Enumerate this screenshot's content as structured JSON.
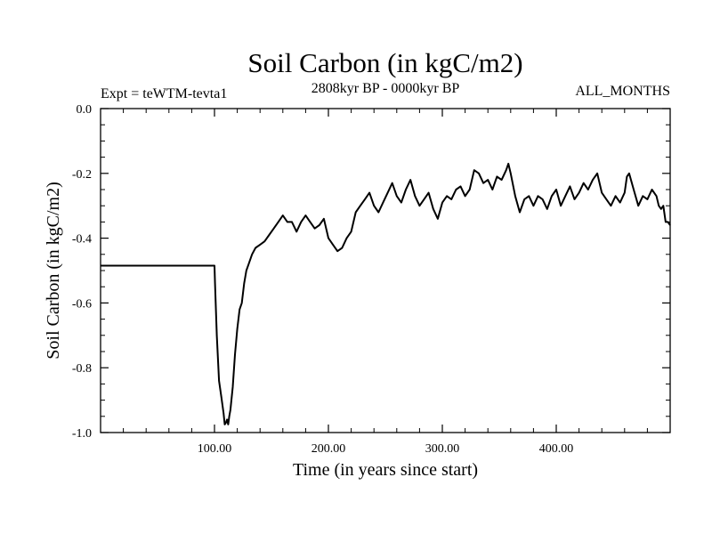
{
  "header": {
    "left": "Expt = teWTM-tevta1",
    "center": "2808kyr BP - 0000kyr BP",
    "right": "ALL_MONTHS"
  },
  "chart_data": {
    "type": "line",
    "title": "Soil Carbon (in kgC/m2)",
    "xlabel": "Time (in years since start)",
    "ylabel": "Soil Carbon (in kgC/m2)",
    "xlim": [
      0,
      500
    ],
    "ylim": [
      -1.0,
      0.0
    ],
    "xticks": [
      100,
      200,
      300,
      400
    ],
    "xtick_labels": [
      "100.00",
      "200.00",
      "300.00",
      "400.00"
    ],
    "yticks": [
      -1.0,
      -0.8,
      -0.6,
      -0.4,
      -0.2,
      0.0
    ],
    "ytick_labels": [
      "-1.0",
      "-0.8",
      "-0.6",
      "-0.4",
      "-0.2",
      "0.0"
    ],
    "grid": false,
    "series": [
      {
        "color": "#000000",
        "x": [
          0,
          100,
          100.5,
          102,
          104,
          106,
          108,
          109,
          110,
          111,
          112,
          113,
          114,
          116,
          118,
          120,
          122,
          124,
          126,
          128,
          130,
          133,
          136,
          140,
          144,
          148,
          152,
          156,
          160,
          164,
          168,
          172,
          176,
          180,
          184,
          188,
          192,
          196,
          200,
          204,
          208,
          212,
          216,
          220,
          224,
          228,
          232,
          236,
          240,
          244,
          248,
          252,
          256,
          260,
          264,
          268,
          272,
          276,
          280,
          284,
          288,
          292,
          296,
          300,
          304,
          308,
          312,
          316,
          320,
          324,
          328,
          332,
          336,
          340,
          344,
          348,
          352,
          356,
          358,
          360,
          364,
          368,
          372,
          376,
          380,
          384,
          388,
          392,
          396,
          400,
          404,
          408,
          412,
          416,
          420,
          424,
          428,
          432,
          436,
          440,
          444,
          448,
          452,
          456,
          460,
          462,
          464,
          468,
          472,
          476,
          480,
          484,
          488,
          490,
          492,
          494,
          496,
          498,
          500
        ],
        "y": [
          -0.485,
          -0.485,
          -0.54,
          -0.7,
          -0.84,
          -0.89,
          -0.94,
          -0.975,
          -0.97,
          -0.96,
          -0.975,
          -0.95,
          -0.93,
          -0.86,
          -0.76,
          -0.68,
          -0.62,
          -0.6,
          -0.54,
          -0.5,
          -0.48,
          -0.45,
          -0.43,
          -0.42,
          -0.41,
          -0.39,
          -0.37,
          -0.35,
          -0.33,
          -0.35,
          -0.35,
          -0.38,
          -0.35,
          -0.33,
          -0.35,
          -0.37,
          -0.36,
          -0.34,
          -0.4,
          -0.42,
          -0.44,
          -0.43,
          -0.4,
          -0.38,
          -0.32,
          -0.3,
          -0.28,
          -0.26,
          -0.3,
          -0.32,
          -0.29,
          -0.26,
          -0.23,
          -0.27,
          -0.29,
          -0.25,
          -0.22,
          -0.27,
          -0.3,
          -0.28,
          -0.26,
          -0.31,
          -0.34,
          -0.29,
          -0.27,
          -0.28,
          -0.25,
          -0.24,
          -0.27,
          -0.25,
          -0.19,
          -0.2,
          -0.23,
          -0.22,
          -0.25,
          -0.21,
          -0.22,
          -0.19,
          -0.17,
          -0.2,
          -0.27,
          -0.32,
          -0.28,
          -0.27,
          -0.3,
          -0.27,
          -0.28,
          -0.31,
          -0.27,
          -0.25,
          -0.3,
          -0.27,
          -0.24,
          -0.28,
          -0.26,
          -0.23,
          -0.25,
          -0.22,
          -0.2,
          -0.26,
          -0.28,
          -0.3,
          -0.27,
          -0.29,
          -0.26,
          -0.21,
          -0.2,
          -0.25,
          -0.3,
          -0.27,
          -0.28,
          -0.25,
          -0.27,
          -0.3,
          -0.31,
          -0.3,
          -0.35,
          -0.35,
          -0.36
        ]
      }
    ]
  }
}
